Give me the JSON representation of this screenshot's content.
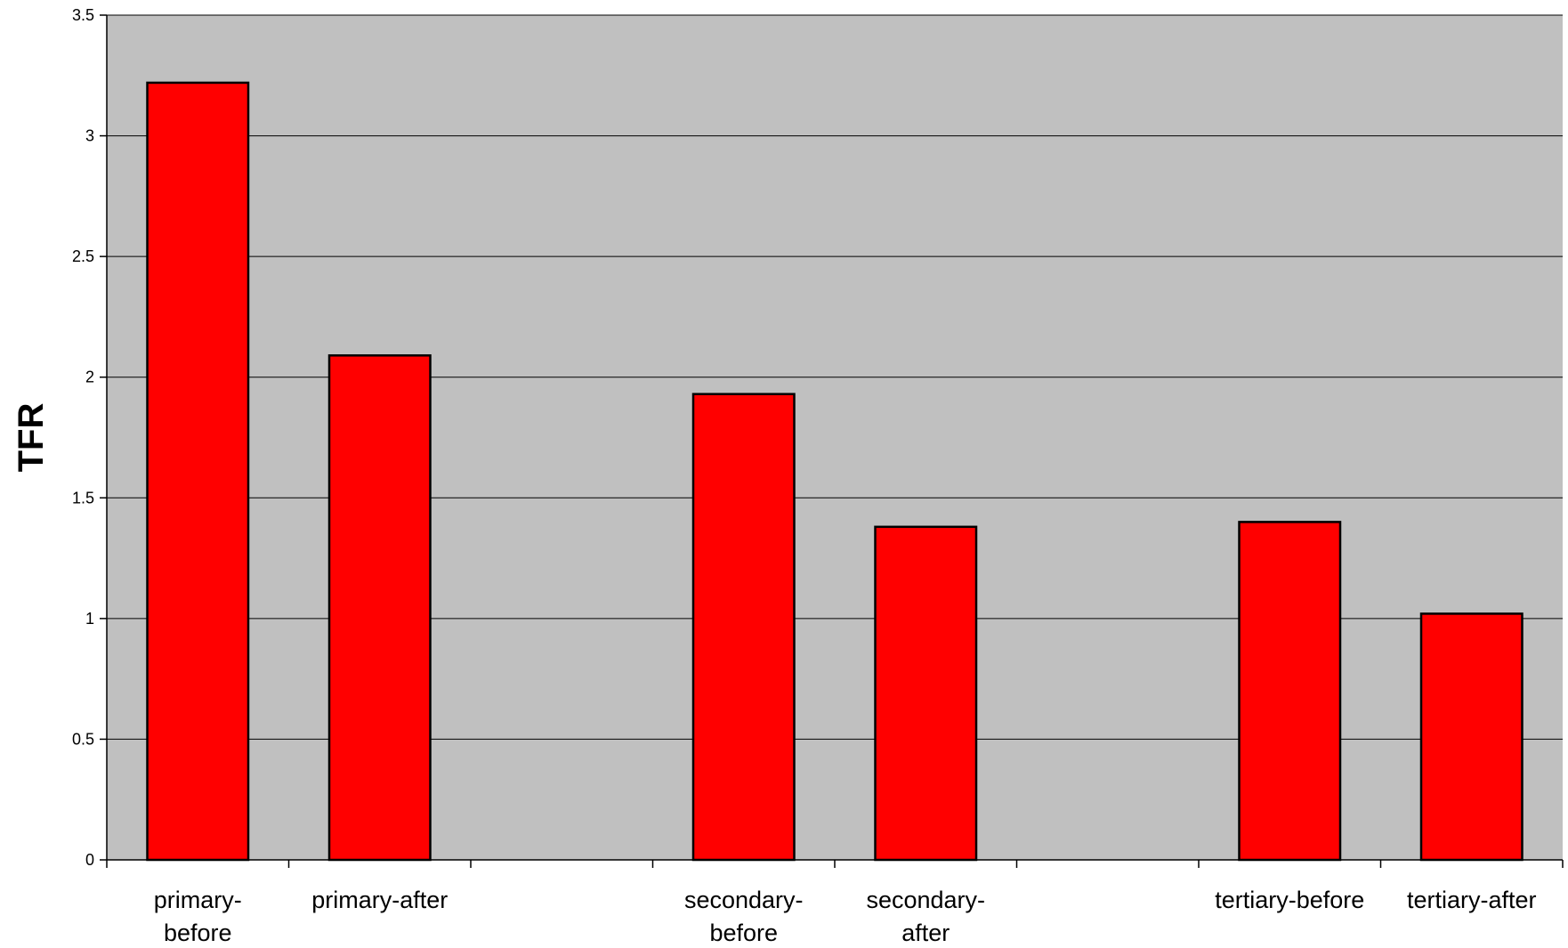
{
  "chart_data": {
    "type": "bar",
    "categories": [
      [
        "primary-",
        "before"
      ],
      [
        "primary-after"
      ],
      [],
      [
        "secondary-",
        "before"
      ],
      [
        "secondary-",
        "after"
      ],
      [],
      [
        "tertiary-before"
      ],
      [
        "tertiary-after"
      ]
    ],
    "values": [
      3.22,
      2.09,
      null,
      1.93,
      1.38,
      null,
      1.4,
      1.02
    ],
    "ylabel": "TFR",
    "xlabel": "",
    "ylim": [
      0,
      3.5
    ],
    "yticks": [
      "0",
      "0.5",
      "1",
      "1.5",
      "2",
      "2.5",
      "3",
      "3.5"
    ],
    "ytick_values": [
      0,
      0.5,
      1,
      1.5,
      2,
      2.5,
      3,
      3.5
    ],
    "grid": true,
    "legend": "none",
    "colors": {
      "bar_fill": "#ff0000",
      "bar_stroke": "#000000",
      "plot_background": "#c0c0c0",
      "gridline": "#000000"
    }
  }
}
